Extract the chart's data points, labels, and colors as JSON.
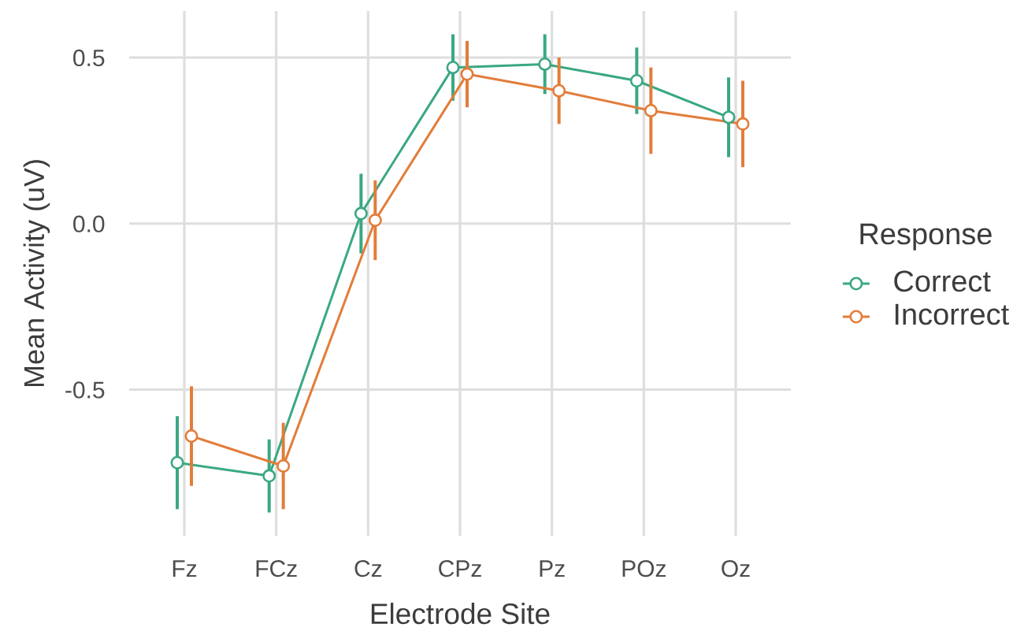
{
  "chart_data": {
    "type": "line",
    "xlabel": "Electrode Site",
    "ylabel": "Mean Activity (uV)",
    "legend_title": "Response",
    "categories": [
      "Fz",
      "FCz",
      "Cz",
      "CPz",
      "Pz",
      "POz",
      "Oz"
    ],
    "series": [
      {
        "name": "Correct",
        "color": "#3aa882",
        "values": [
          -0.72,
          -0.76,
          0.03,
          0.47,
          0.48,
          0.43,
          0.32
        ],
        "errors": [
          0.14,
          0.11,
          0.12,
          0.1,
          0.09,
          0.1,
          0.12
        ]
      },
      {
        "name": "Incorrect",
        "color": "#e27d3a",
        "values": [
          -0.64,
          -0.73,
          0.01,
          0.45,
          0.4,
          0.34,
          0.3
        ],
        "errors": [
          0.15,
          0.13,
          0.12,
          0.1,
          0.1,
          0.13,
          0.13
        ]
      }
    ],
    "ylim": [
      -0.94,
      0.64
    ],
    "yticks": [
      -0.5,
      {
        "value": 0,
        "label": "0.0"
      },
      0.5
    ],
    "grid": true,
    "legend": "right",
    "marker": "circle",
    "line_style": "solid"
  }
}
